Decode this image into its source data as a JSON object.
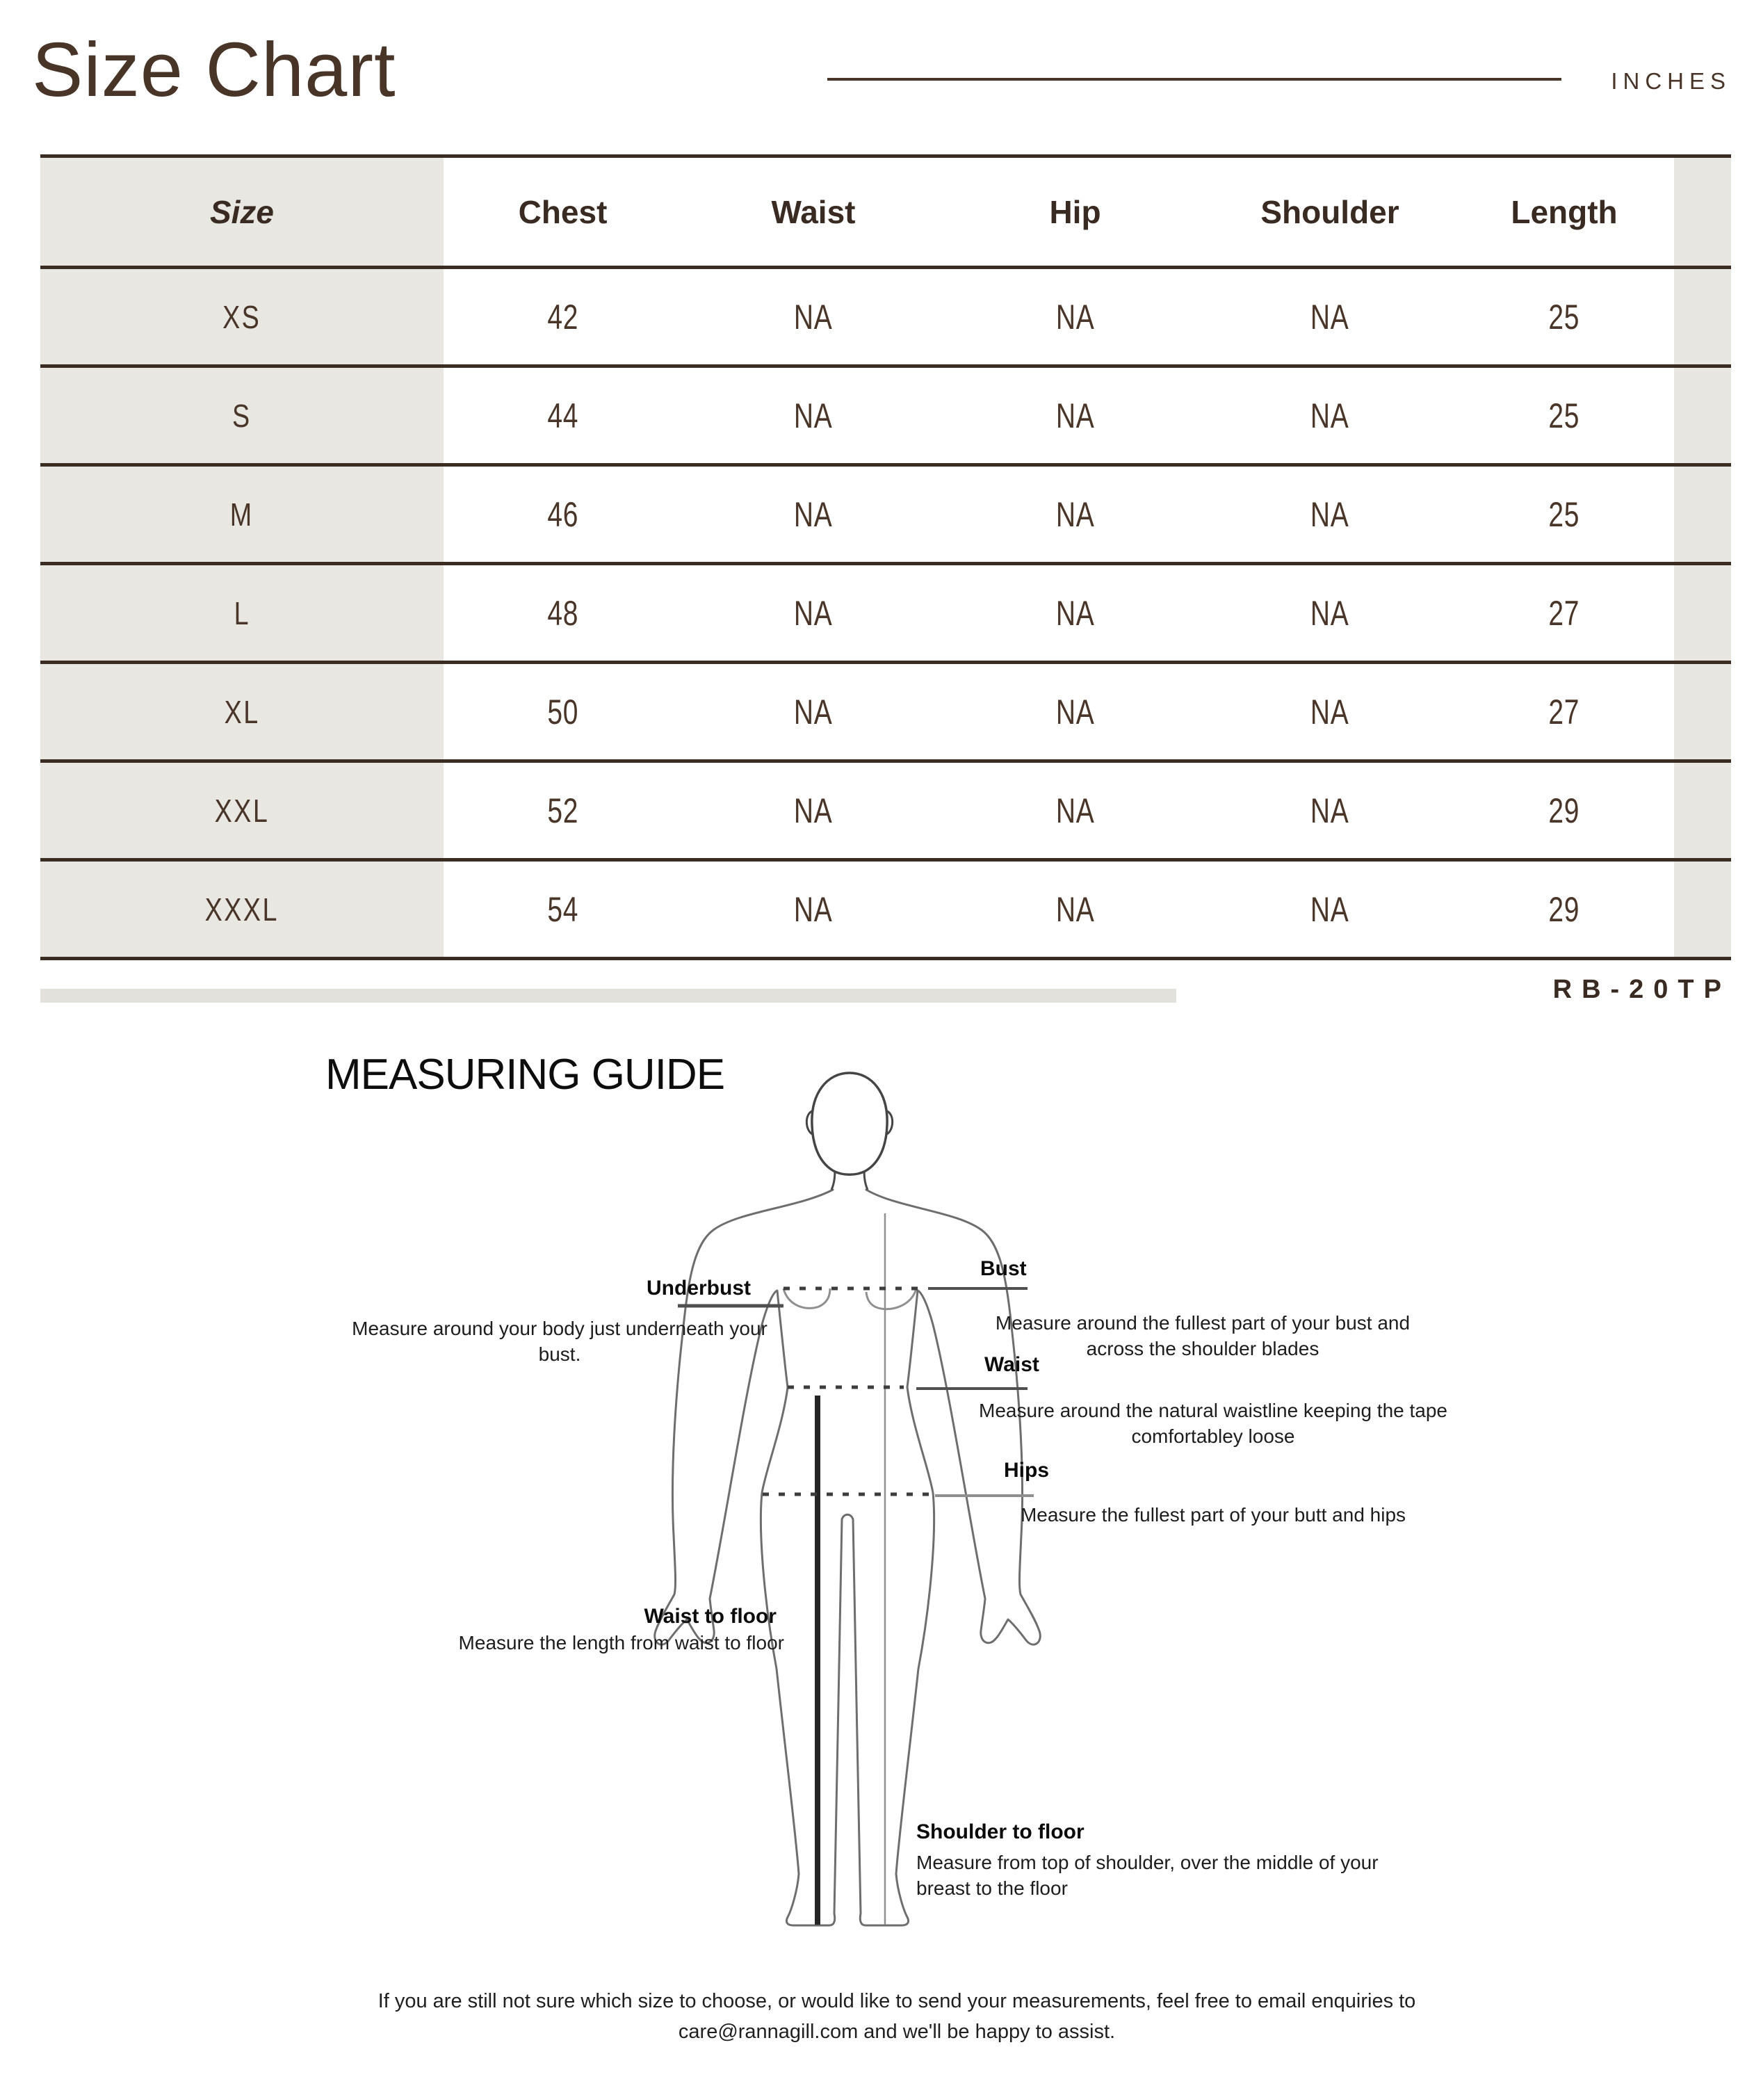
{
  "header": {
    "title": "Size Chart",
    "unit_label": "INCHES"
  },
  "table": {
    "columns": [
      "Size",
      "Chest",
      "Waist",
      "Hip",
      "Shoulder",
      "Length"
    ],
    "rows": [
      {
        "size": "XS",
        "chest": "42",
        "waist": "NA",
        "hip": "NA",
        "shoulder": "NA",
        "length": "25"
      },
      {
        "size": "S",
        "chest": "44",
        "waist": "NA",
        "hip": "NA",
        "shoulder": "NA",
        "length": "25"
      },
      {
        "size": "M",
        "chest": "46",
        "waist": "NA",
        "hip": "NA",
        "shoulder": "NA",
        "length": "25"
      },
      {
        "size": "L",
        "chest": "48",
        "waist": "NA",
        "hip": "NA",
        "shoulder": "NA",
        "length": "27"
      },
      {
        "size": "XL",
        "chest": "50",
        "waist": "NA",
        "hip": "NA",
        "shoulder": "NA",
        "length": "27"
      },
      {
        "size": "XXL",
        "chest": "52",
        "waist": "NA",
        "hip": "NA",
        "shoulder": "NA",
        "length": "29"
      },
      {
        "size": "XXXL",
        "chest": "54",
        "waist": "NA",
        "hip": "NA",
        "shoulder": "NA",
        "length": "29"
      }
    ]
  },
  "product_code": "RB-20TP",
  "measuring_guide": {
    "title": "MEASURING GUIDE",
    "annotations": {
      "underbust": {
        "label": "Underbust",
        "description": "Measure around your body just underneath your bust."
      },
      "bust": {
        "label": "Bust",
        "description": "Measure around the fullest part of your bust and across the shoulder blades"
      },
      "waist": {
        "label": "Waist",
        "description": "Measure around the natural waistline keeping the tape comfortabley loose"
      },
      "hips": {
        "label": "Hips",
        "description": "Measure the fullest part of your butt and hips"
      },
      "waist_to_floor": {
        "label": "Waist to floor",
        "description": "Measure the length from waist to floor"
      },
      "shoulder_to_floor": {
        "label": "Shoulder to floor",
        "description": "Measure from top of shoulder, over the middle of your breast to the floor"
      }
    }
  },
  "footer": {
    "note": "If you are still not sure which size to choose, or would like to send your measurements, feel free to email enquiries to care@rannagill.com and we'll be happy to assist."
  },
  "colors": {
    "brown": "#483527",
    "line_brown": "#3b2c22",
    "column_gray": "#e9e7e2",
    "strip_gray": "#e8e6e0",
    "bar_gray": "#e3e1db",
    "figure_gray": "#6e6e6e",
    "figure_dark": "#454545",
    "text_black": "#0d0d0d"
  }
}
